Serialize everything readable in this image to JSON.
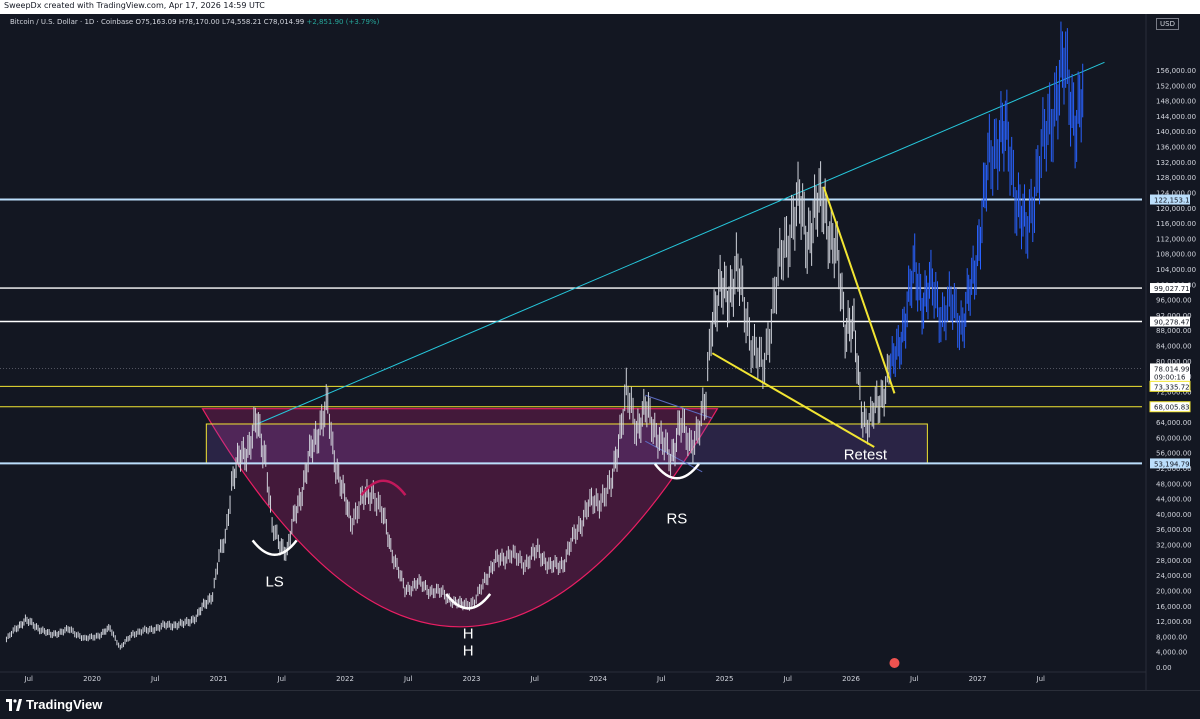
{
  "header": {
    "credit": "SweepDx created with TradingView.com, Apr 17, 2026 14:59 UTC"
  },
  "symbol_bar": {
    "name": "Bitcoin / U.S. Dollar · 1D · Coinbase",
    "open": "O75,163.09",
    "high": "H78,170.00",
    "low": "L74,558.21",
    "close": "C78,014.99",
    "change": "+2,851.90 (+3.79%)"
  },
  "currency": "USD",
  "footer": {
    "brand": "TradingView"
  },
  "colors": {
    "background": "#131722",
    "candles_history": "#d1d4dc",
    "candles_projection": "#2962ff",
    "cup_fill": "#6b1b4e",
    "rectangle": "#f2e533",
    "trendline": "#26c6da",
    "yellow_line": "#f2e533",
    "white_level": "#ffffff",
    "blue_level": "#bbdefb"
  },
  "chart_data": {
    "type": "candlestick",
    "y_axis": {
      "min": 0,
      "max": 160000,
      "tick_step": 4000,
      "ticks": [
        "156,000.00",
        "152,000.00",
        "148,000.00",
        "144,000.00",
        "140,000.00",
        "136,000.00",
        "132,000.00",
        "128,000.00",
        "124,000.00",
        "120,000.00",
        "116,000.00",
        "112,000.00",
        "108,000.00",
        "104,000.00",
        "100,000.00",
        "96,000.00",
        "92,000.00",
        "88,000.00",
        "84,000.00",
        "80,000.00",
        "76,000.00",
        "72,000.00",
        "64,000.00",
        "60,000.00",
        "56,000.00",
        "52,000.00",
        "48,000.00",
        "44,000.00",
        "40,000.00",
        "36,000.00",
        "32,000.00",
        "28,000.00",
        "24,000.00",
        "20,000.00",
        "16,000.00",
        "12,000.00",
        "8,000.00",
        "4,000.00",
        "0.00"
      ],
      "tick_values": [
        156000,
        152000,
        148000,
        144000,
        140000,
        136000,
        132000,
        128000,
        124000,
        120000,
        116000,
        112000,
        108000,
        104000,
        100000,
        96000,
        92000,
        88000,
        84000,
        80000,
        76000,
        72000,
        64000,
        60000,
        56000,
        52000,
        48000,
        44000,
        40000,
        36000,
        32000,
        28000,
        24000,
        20000,
        16000,
        12000,
        8000,
        4000,
        0
      ]
    },
    "x_axis": {
      "ticks": [
        "Jul",
        "2020",
        "Jul",
        "2021",
        "Jul",
        "2022",
        "Jul",
        "2023",
        "Jul",
        "2024",
        "Jul",
        "2025",
        "Jul",
        "2026",
        "Jul",
        "2027",
        "Jul"
      ],
      "tick_dates": [
        2019.5,
        2020.0,
        2020.5,
        2021.0,
        2021.5,
        2022.0,
        2022.5,
        2023.0,
        2023.5,
        2024.0,
        2024.5,
        2025.0,
        2025.5,
        2026.0,
        2026.5,
        2027.0,
        2027.5
      ]
    },
    "price_labels": [
      {
        "text": "122,153.12",
        "value": 122153.12,
        "style": "blue"
      },
      {
        "text": "99,027.71",
        "value": 99027.71,
        "style": "white"
      },
      {
        "text": "90,278.47",
        "value": 90278.47,
        "style": "white"
      },
      {
        "text": "78,014.99",
        "value": 78014.99,
        "style": "current"
      },
      {
        "text": "09:00:16",
        "value": 75900,
        "style": "timer"
      },
      {
        "text": "73,335.72",
        "value": 73335.72,
        "style": "yellow"
      },
      {
        "text": "68,005.83",
        "value": 68005.83,
        "style": "yellow"
      },
      {
        "text": "53,194.79",
        "value": 53194.79,
        "style": "blue"
      }
    ],
    "horizontal_levels": [
      {
        "value": 122153.12,
        "style": "blue"
      },
      {
        "value": 99027.71,
        "style": "white"
      },
      {
        "value": 90278.47,
        "style": "white"
      },
      {
        "value": 73335.72,
        "style": "yellow"
      },
      {
        "value": 68005.83,
        "style": "yellow"
      },
      {
        "value": 53194.79,
        "style": "blue"
      },
      {
        "value": 78014.99,
        "style": "current"
      }
    ],
    "history_path": [
      [
        2019.3,
        7200
      ],
      [
        2019.38,
        10200
      ],
      [
        2019.45,
        12300
      ],
      [
        2019.55,
        10200
      ],
      [
        2019.65,
        8400
      ],
      [
        2019.8,
        9800
      ],
      [
        2019.92,
        7300
      ],
      [
        2020.05,
        8500
      ],
      [
        2020.12,
        10200
      ],
      [
        2020.2,
        5000
      ],
      [
        2020.3,
        8800
      ],
      [
        2020.42,
        9600
      ],
      [
        2020.55,
        10800
      ],
      [
        2020.7,
        11200
      ],
      [
        2020.8,
        13000
      ],
      [
        2020.87,
        16500
      ],
      [
        2020.93,
        19000
      ],
      [
        2020.98,
        28500
      ],
      [
        2021.03,
        34000
      ],
      [
        2021.08,
        48000
      ],
      [
        2021.15,
        55000
      ],
      [
        2021.22,
        58000
      ],
      [
        2021.28,
        63800
      ],
      [
        2021.35,
        55000
      ],
      [
        2021.4,
        36000
      ],
      [
        2021.45,
        33000
      ],
      [
        2021.52,
        30000
      ],
      [
        2021.58,
        40000
      ],
      [
        2021.65,
        48000
      ],
      [
        2021.72,
        58000
      ],
      [
        2021.78,
        63500
      ],
      [
        2021.84,
        67500
      ],
      [
        2021.88,
        57000
      ],
      [
        2021.95,
        47000
      ],
      [
        2022.02,
        38000
      ],
      [
        2022.1,
        43000
      ],
      [
        2022.2,
        46000
      ],
      [
        2022.28,
        39000
      ],
      [
        2022.35,
        30000
      ],
      [
        2022.45,
        20000
      ],
      [
        2022.55,
        22000
      ],
      [
        2022.65,
        20000
      ],
      [
        2022.75,
        19300
      ],
      [
        2022.85,
        16500
      ],
      [
        2022.92,
        16700
      ],
      [
        2023.0,
        16600
      ],
      [
        2023.08,
        23000
      ],
      [
        2023.18,
        28000
      ],
      [
        2023.28,
        29500
      ],
      [
        2023.4,
        27000
      ],
      [
        2023.5,
        30500
      ],
      [
        2023.6,
        26000
      ],
      [
        2023.7,
        27000
      ],
      [
        2023.8,
        35000
      ],
      [
        2023.9,
        42000
      ],
      [
        2024.0,
        44000
      ],
      [
        2024.08,
        47000
      ],
      [
        2024.15,
        62000
      ],
      [
        2024.2,
        71000
      ],
      [
        2024.28,
        63000
      ],
      [
        2024.35,
        67000
      ],
      [
        2024.45,
        61000
      ],
      [
        2024.55,
        54000
      ],
      [
        2024.62,
        64000
      ],
      [
        2024.7,
        58000
      ],
      [
        2024.78,
        63000
      ],
      [
        2024.83,
        69000
      ],
      [
        2024.87,
        90000
      ],
      [
        2024.93,
        98000
      ],
      [
        2025.0,
        97000
      ],
      [
        2025.07,
        104000
      ],
      [
        2025.12,
        96000
      ],
      [
        2025.2,
        84000
      ],
      [
        2025.28,
        77000
      ],
      [
        2025.36,
        95000
      ],
      [
        2025.44,
        108000
      ],
      [
        2025.52,
        118000
      ],
      [
        2025.57,
        120000
      ],
      [
        2025.63,
        113000
      ],
      [
        2025.7,
        118000
      ],
      [
        2025.76,
        124000
      ],
      [
        2025.82,
        110000
      ],
      [
        2025.88,
        105000
      ],
      [
        2025.93,
        90000
      ],
      [
        2026.0,
        87000
      ],
      [
        2026.07,
        66000
      ],
      [
        2026.12,
        62000
      ],
      [
        2026.18,
        70000
      ],
      [
        2026.25,
        72000
      ],
      [
        2026.29,
        78000
      ]
    ],
    "projection_path": [
      [
        2026.29,
        78000
      ],
      [
        2026.35,
        82000
      ],
      [
        2026.42,
        95000
      ],
      [
        2026.48,
        103000
      ],
      [
        2026.55,
        96000
      ],
      [
        2026.62,
        99000
      ],
      [
        2026.7,
        92000
      ],
      [
        2026.78,
        94000
      ],
      [
        2026.86,
        90000
      ],
      [
        2026.93,
        99000
      ],
      [
        2027.0,
        115000
      ],
      [
        2027.07,
        132000
      ],
      [
        2027.15,
        140000
      ],
      [
        2027.22,
        136000
      ],
      [
        2027.3,
        121000
      ],
      [
        2027.36,
        112000
      ],
      [
        2027.44,
        128000
      ],
      [
        2027.52,
        138000
      ],
      [
        2027.6,
        150000
      ],
      [
        2027.66,
        156000
      ],
      [
        2027.7,
        152000
      ],
      [
        2027.76,
        142000
      ],
      [
        2027.82,
        148000
      ]
    ],
    "annotations": {
      "labels": [
        {
          "text": "LS",
          "x": 2021.42,
          "y": 21000
        },
        {
          "text": "H",
          "x": 2022.95,
          "y": 7500
        },
        {
          "text": "H",
          "x": 2022.95,
          "y": 3000
        },
        {
          "text": "RS",
          "x": 2024.6,
          "y": 37500
        },
        {
          "text": "Retest",
          "x": 2026.09,
          "y": 54200
        }
      ],
      "rectangle": {
        "x1": 2020.88,
        "x2": 2026.58,
        "y1": 53194.79,
        "y2": 63500
      },
      "cup": {
        "x1": 2020.85,
        "x2": 2024.92,
        "top": 67500,
        "bottom": 10500
      },
      "ascending_trendline": [
        [
          2021.28,
          63500
        ],
        [
          2027.98,
          158000
        ]
      ],
      "descending_channel": [
        [
          [
            2024.35,
            71000
          ],
          [
            2024.88,
            65000
          ]
        ],
        [
          [
            2024.35,
            59000
          ],
          [
            2024.8,
            51000
          ]
        ]
      ],
      "yellow_lines": [
        [
          [
            2024.88,
            82000
          ],
          [
            2026.16,
            57500
          ]
        ],
        [
          [
            2025.76,
            125500
          ],
          [
            2026.32,
            71500
          ]
        ]
      ],
      "arcs": [
        {
          "x": 2021.42,
          "y": 31000,
          "shape": "smile",
          "color": "#ffffff"
        },
        {
          "x": 2022.95,
          "y": 17000,
          "shape": "smile",
          "color": "#ffffff"
        },
        {
          "x": 2024.6,
          "y": 51000,
          "shape": "smile",
          "color": "#ffffff"
        },
        {
          "x": 2022.28,
          "y": 47000,
          "shape": "frown",
          "color": "#c2185b"
        }
      ]
    }
  }
}
